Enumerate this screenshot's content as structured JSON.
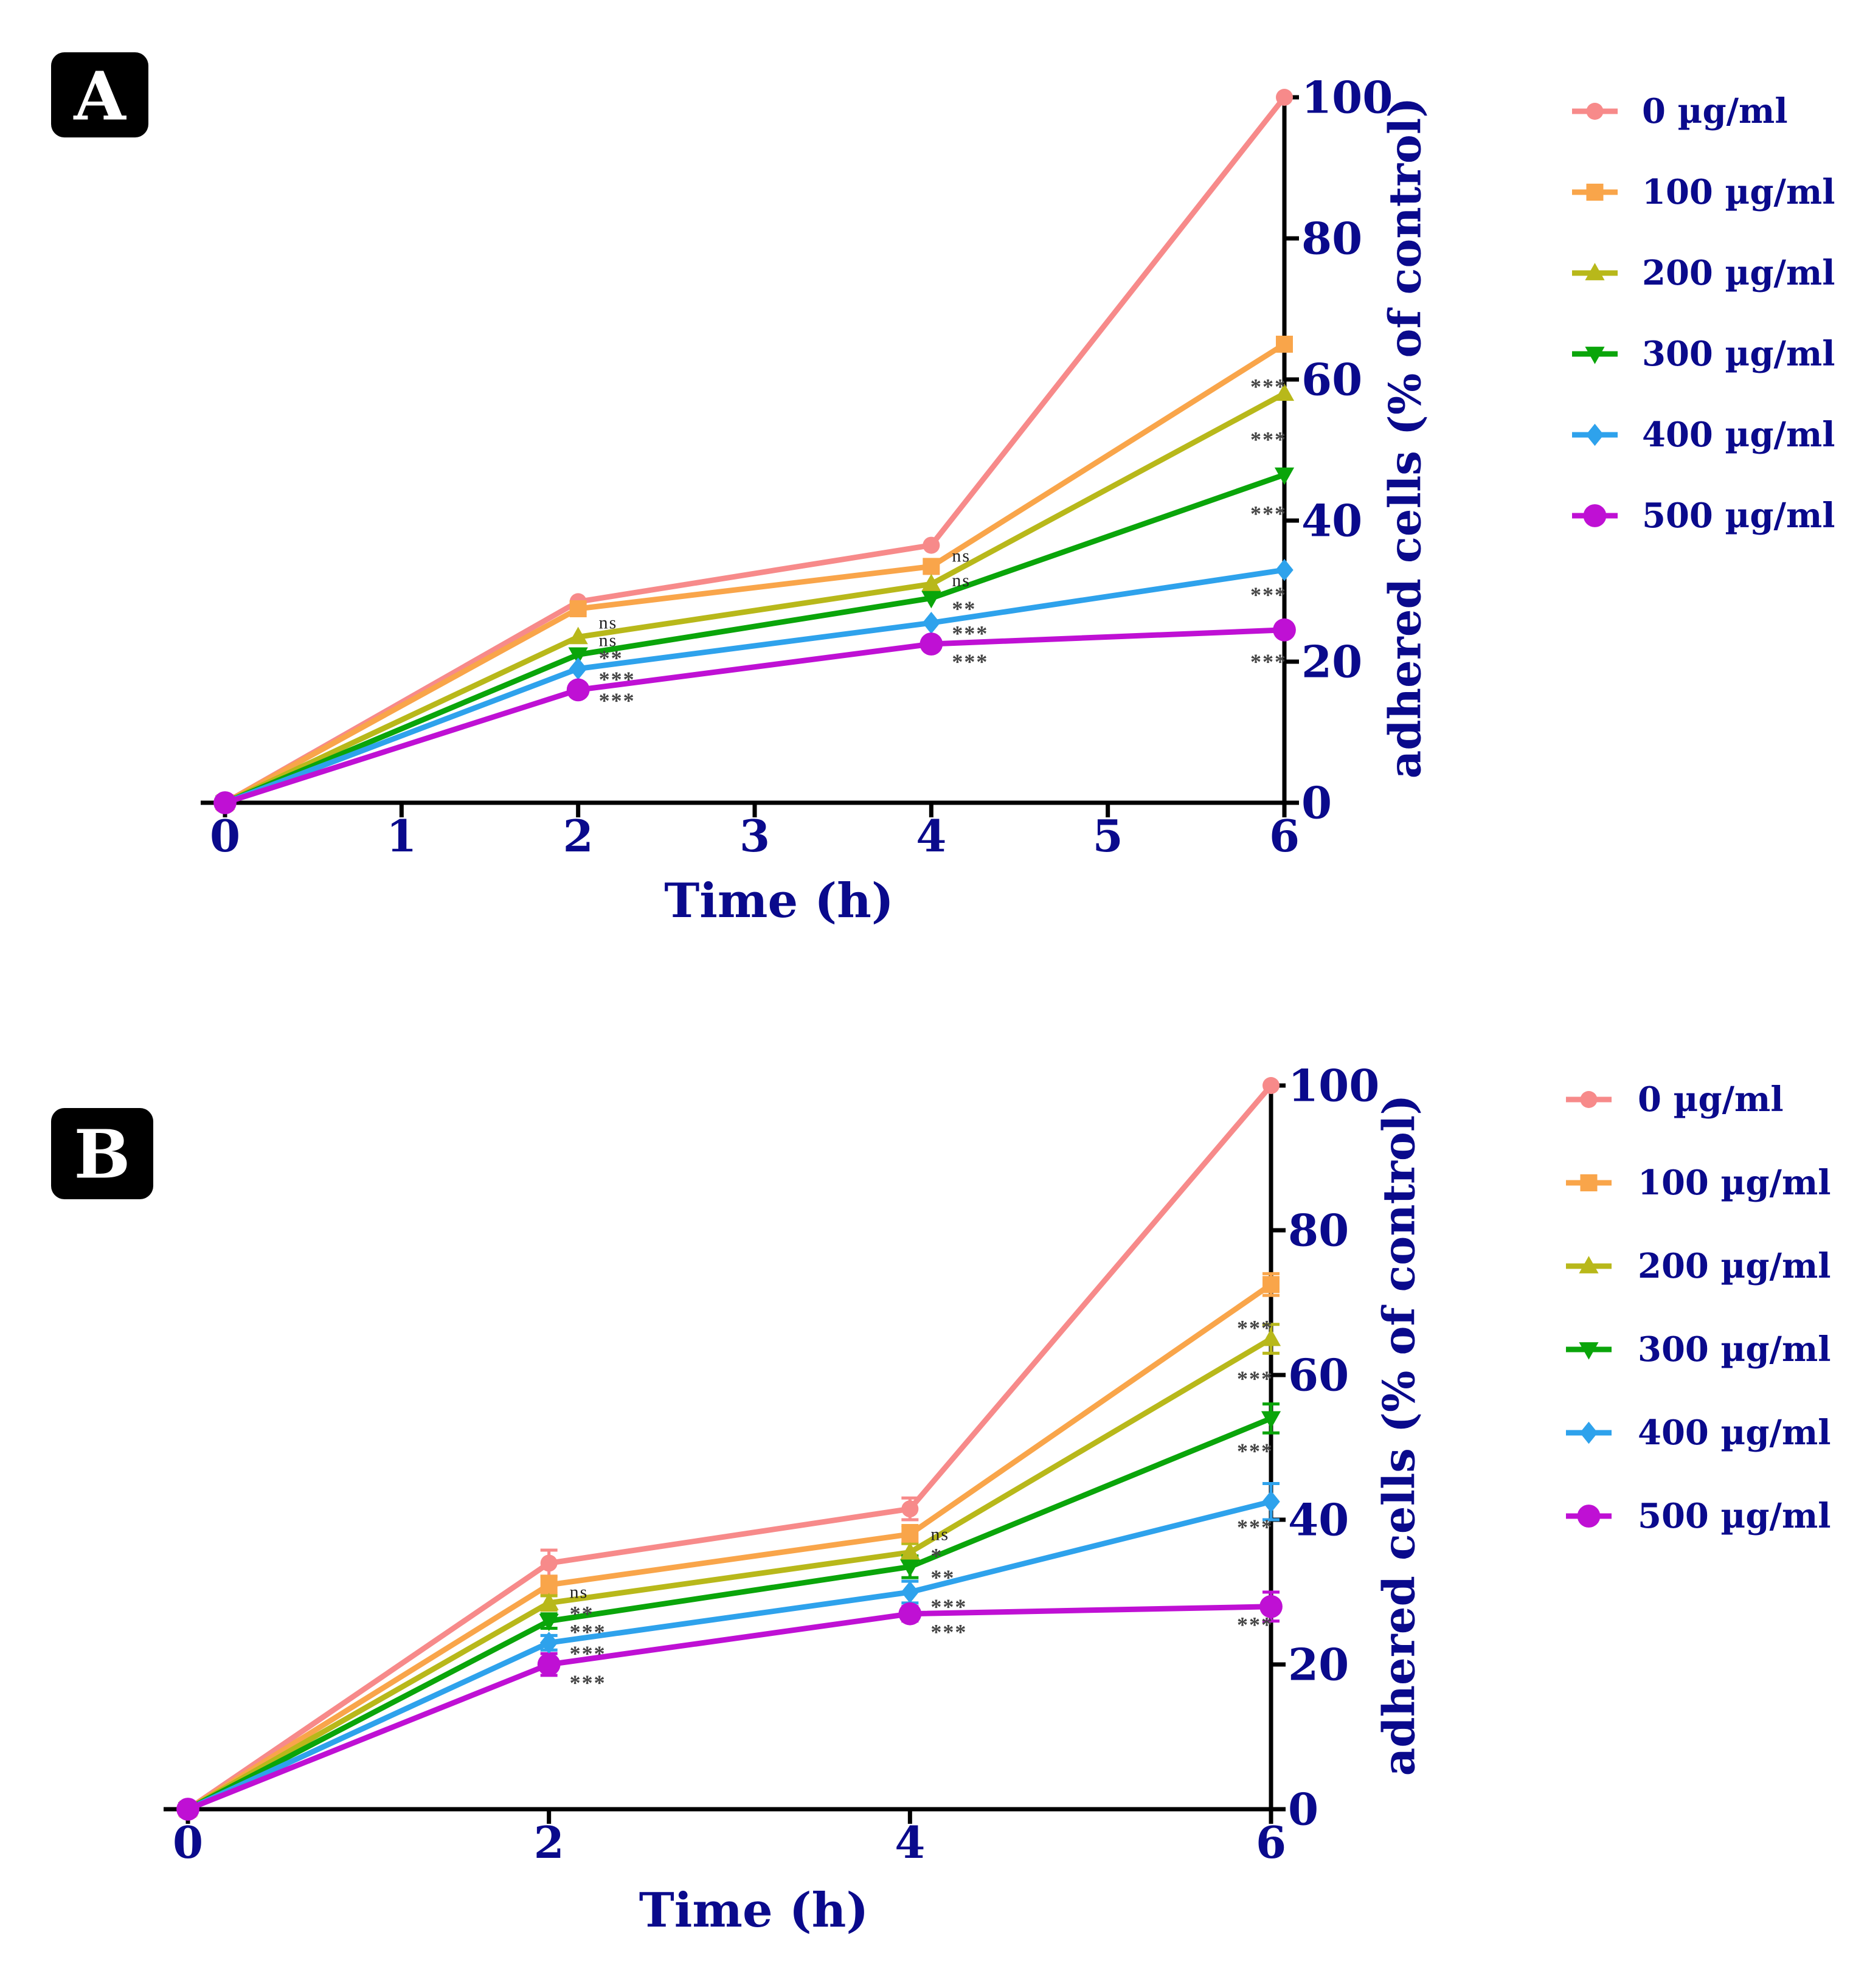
{
  "figure": {
    "panels": [
      "A",
      "B"
    ]
  },
  "series_style": [
    {
      "name": "0 µg/ml",
      "color": "#f78a8a",
      "marker": "circle"
    },
    {
      "name": "100 µg/ml",
      "color": "#f9a54a",
      "marker": "square"
    },
    {
      "name": "200 µg/ml",
      "color": "#b8b81a",
      "marker": "triangle-up"
    },
    {
      "name": "300 µg/ml",
      "color": "#0aa50a",
      "marker": "triangle-down"
    },
    {
      "name": "400 µg/ml",
      "color": "#2ea2ec",
      "marker": "diamond"
    },
    {
      "name": "500 µg/ml",
      "color": "#bf10d4",
      "marker": "big-circle"
    }
  ],
  "colors": {
    "axis": "#000000",
    "label": "#0a0a8c",
    "sig": "#444444",
    "badge_bg": "#000000",
    "badge_text": "#ffffff"
  },
  "chart_data": [
    {
      "panel": "A",
      "type": "line",
      "xlabel": "Time (h)",
      "ylabel": "adhered cells (% of control)",
      "xlim": [
        0,
        6
      ],
      "ylim": [
        0,
        100
      ],
      "xticks": [
        0,
        1,
        2,
        3,
        4,
        5,
        6
      ],
      "yticks": [
        0,
        20,
        40,
        60,
        80,
        100
      ],
      "x": [
        0,
        2,
        4,
        6
      ],
      "series": [
        {
          "name": "0 µg/ml",
          "values": [
            0,
            28.5,
            36.5,
            100
          ]
        },
        {
          "name": "100 µg/ml",
          "values": [
            0,
            27.5,
            33.5,
            65
          ]
        },
        {
          "name": "200 µg/ml",
          "values": [
            0,
            23.5,
            31,
            58
          ]
        },
        {
          "name": "300 µg/ml",
          "values": [
            0,
            21,
            29,
            46.5
          ]
        },
        {
          "name": "400 µg/ml",
          "values": [
            0,
            19,
            25.5,
            33
          ]
        },
        {
          "name": "500 µg/ml",
          "values": [
            0,
            16,
            22.5,
            24.5
          ]
        }
      ],
      "error": [
        [
          0,
          0,
          0,
          0
        ],
        [
          0,
          0,
          0,
          0
        ],
        [
          0,
          0,
          0,
          0
        ],
        [
          0,
          0,
          0,
          0
        ],
        [
          0,
          0,
          0,
          0
        ],
        [
          0,
          0,
          0,
          0
        ]
      ],
      "annotations": [
        {
          "x": 2,
          "y": 25.5,
          "text": "ns"
        },
        {
          "x": 2,
          "y": 23.0,
          "text": "ns"
        },
        {
          "x": 2,
          "y": 20.5,
          "text": "**"
        },
        {
          "x": 2,
          "y": 17.5,
          "text": "***"
        },
        {
          "x": 2,
          "y": 14.5,
          "text": "***"
        },
        {
          "x": 4,
          "y": 35.0,
          "text": "ns"
        },
        {
          "x": 4,
          "y": 31.5,
          "text": "ns"
        },
        {
          "x": 4,
          "y": 27.5,
          "text": "**"
        },
        {
          "x": 4,
          "y": 24.0,
          "text": "***"
        },
        {
          "x": 4,
          "y": 20.0,
          "text": "***"
        },
        {
          "x": 6,
          "y": 59.0,
          "text": "***"
        },
        {
          "x": 6,
          "y": 51.5,
          "text": "***"
        },
        {
          "x": 6,
          "y": 41.0,
          "text": "***"
        },
        {
          "x": 6,
          "y": 29.5,
          "text": "***"
        },
        {
          "x": 6,
          "y": 20.0,
          "text": "***"
        }
      ]
    },
    {
      "panel": "B",
      "type": "line",
      "xlabel": "Time (h)",
      "ylabel": "adhered cells (% of control)",
      "xlim": [
        0,
        6
      ],
      "ylim": [
        0,
        100
      ],
      "xticks": [
        0,
        2,
        4,
        6
      ],
      "yticks": [
        0,
        20,
        40,
        60,
        80,
        100
      ],
      "x": [
        0,
        2,
        4,
        6
      ],
      "series": [
        {
          "name": "0 µg/ml",
          "values": [
            0,
            34,
            41.5,
            100
          ]
        },
        {
          "name": "100 µg/ml",
          "values": [
            0,
            31,
            38,
            72.5
          ]
        },
        {
          "name": "200 µg/ml",
          "values": [
            0,
            28.5,
            35.5,
            65
          ]
        },
        {
          "name": "300 µg/ml",
          "values": [
            0,
            26,
            33.5,
            54
          ]
        },
        {
          "name": "400 µg/ml",
          "values": [
            0,
            23,
            30,
            42.5
          ]
        },
        {
          "name": "500 µg/ml",
          "values": [
            0,
            20,
            27,
            28
          ]
        }
      ],
      "error": [
        [
          0,
          1.8,
          1.5,
          0
        ],
        [
          0,
          1.2,
          1.2,
          1.5
        ],
        [
          0,
          1.0,
          1.2,
          2.0
        ],
        [
          0,
          1.0,
          1.5,
          2.0
        ],
        [
          0,
          1.0,
          1.5,
          2.5
        ],
        [
          0,
          1.5,
          1.0,
          2.0
        ]
      ],
      "annotations": [
        {
          "x": 2,
          "y": 30.0,
          "text": "ns"
        },
        {
          "x": 2,
          "y": 27.0,
          "text": "**"
        },
        {
          "x": 2,
          "y": 24.5,
          "text": "***"
        },
        {
          "x": 2,
          "y": 21.5,
          "text": "***"
        },
        {
          "x": 2,
          "y": 17.5,
          "text": "***"
        },
        {
          "x": 4,
          "y": 38.0,
          "text": "ns"
        },
        {
          "x": 4,
          "y": 35.0,
          "text": "*"
        },
        {
          "x": 4,
          "y": 32.0,
          "text": "**"
        },
        {
          "x": 4,
          "y": 28.0,
          "text": "***"
        },
        {
          "x": 4,
          "y": 24.5,
          "text": "***"
        },
        {
          "x": 6,
          "y": 66.5,
          "text": "***"
        },
        {
          "x": 6,
          "y": 59.5,
          "text": "***"
        },
        {
          "x": 6,
          "y": 49.5,
          "text": "***"
        },
        {
          "x": 6,
          "y": 39.0,
          "text": "***"
        },
        {
          "x": 6,
          "y": 25.5,
          "text": "***"
        }
      ]
    }
  ]
}
